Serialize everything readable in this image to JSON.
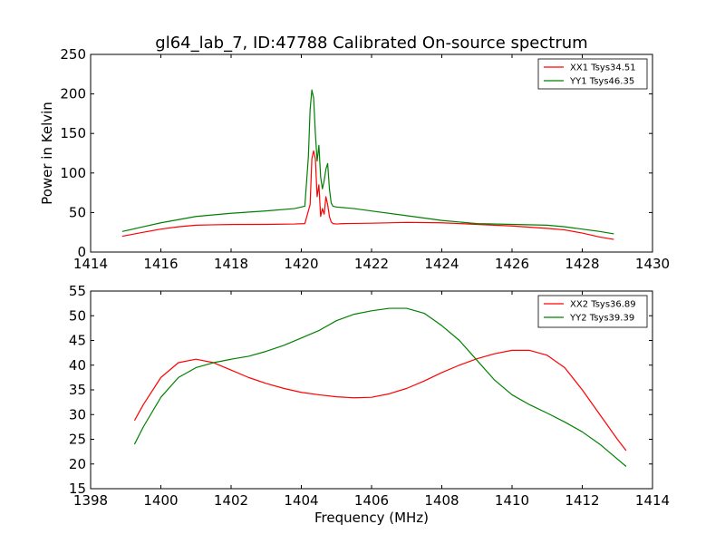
{
  "chart_data": [
    {
      "type": "line",
      "title": "gl64_lab_7, ID:47788 Calibrated On-source spectrum",
      "xlabel": "",
      "ylabel": "Power in Kelvin",
      "xlim": [
        1414,
        1430
      ],
      "ylim": [
        0,
        250
      ],
      "xticks": [
        "1414",
        "1416",
        "1418",
        "1420",
        "1422",
        "1424",
        "1426",
        "1428",
        "1430"
      ],
      "yticks": [
        "0",
        "50",
        "100",
        "150",
        "200",
        "250"
      ],
      "grid": false,
      "legend_position": "top-right",
      "series": [
        {
          "name": "XX1 Tsys34.51",
          "color": "#ff0000",
          "x": [
            1414.9,
            1415.5,
            1416.0,
            1416.5,
            1417.0,
            1417.5,
            1418.0,
            1419.0,
            1419.8,
            1420.1,
            1420.25,
            1420.3,
            1420.35,
            1420.4,
            1420.45,
            1420.5,
            1420.55,
            1420.6,
            1420.65,
            1420.7,
            1420.75,
            1420.8,
            1420.85,
            1420.9,
            1421.0,
            1421.2,
            1422.0,
            1423.0,
            1424.0,
            1425.0,
            1426.0,
            1427.0,
            1427.5,
            1428.0,
            1428.5,
            1428.9
          ],
          "y": [
            20,
            25,
            29,
            32,
            34,
            34.5,
            34.8,
            35,
            35.5,
            36,
            60,
            118,
            128,
            118,
            70,
            85,
            45,
            55,
            48,
            70,
            60,
            45,
            38,
            36,
            35.5,
            36,
            36.5,
            37.5,
            37,
            35,
            33,
            30,
            28,
            24,
            19,
            16
          ]
        },
        {
          "name": "YY1 Tsys46.35",
          "color": "#008000",
          "x": [
            1414.9,
            1415.5,
            1416.0,
            1416.5,
            1417.0,
            1418.0,
            1419.0,
            1419.8,
            1420.1,
            1420.2,
            1420.25,
            1420.3,
            1420.35,
            1420.4,
            1420.45,
            1420.5,
            1420.55,
            1420.6,
            1420.65,
            1420.7,
            1420.75,
            1420.8,
            1420.85,
            1420.9,
            1421.0,
            1421.5,
            1422.0,
            1423.0,
            1424.0,
            1425.0,
            1426.0,
            1427.0,
            1427.5,
            1428.0,
            1428.5,
            1428.9
          ],
          "y": [
            26,
            32,
            37,
            41,
            45,
            49,
            52,
            55,
            58,
            120,
            180,
            205,
            195,
            150,
            115,
            135,
            95,
            80,
            90,
            105,
            112,
            80,
            62,
            58,
            57,
            55,
            52,
            46,
            40,
            36,
            35,
            34,
            32,
            29,
            26,
            23
          ]
        }
      ]
    },
    {
      "type": "line",
      "title": "",
      "xlabel": "Frequency (MHz)",
      "ylabel": "",
      "xlim": [
        1398,
        1414
      ],
      "ylim": [
        15,
        55
      ],
      "xticks": [
        "1398",
        "1400",
        "1402",
        "1404",
        "1406",
        "1408",
        "1410",
        "1412",
        "1414"
      ],
      "yticks": [
        "15",
        "20",
        "25",
        "30",
        "35",
        "40",
        "45",
        "50",
        "55"
      ],
      "grid": false,
      "legend_position": "top-right",
      "series": [
        {
          "name": "XX2 Tsys36.89",
          "color": "#ff0000",
          "x": [
            1399.25,
            1399.5,
            1400.0,
            1400.5,
            1401.0,
            1401.5,
            1402.0,
            1402.5,
            1403.0,
            1403.5,
            1404.0,
            1404.5,
            1405.0,
            1405.5,
            1406.0,
            1406.5,
            1407.0,
            1407.5,
            1408.0,
            1408.5,
            1409.0,
            1409.5,
            1410.0,
            1410.5,
            1411.0,
            1411.5,
            1412.0,
            1412.5,
            1413.0,
            1413.25
          ],
          "y": [
            28.8,
            32,
            37.5,
            40.5,
            41.2,
            40.5,
            39,
            37.5,
            36.3,
            35.3,
            34.5,
            34,
            33.6,
            33.4,
            33.5,
            34.2,
            35.3,
            36.8,
            38.5,
            40,
            41.3,
            42.3,
            43,
            43,
            42,
            39.5,
            35,
            30,
            25,
            22.7
          ]
        },
        {
          "name": "YY2 Tsys39.39",
          "color": "#008000",
          "x": [
            1399.25,
            1399.5,
            1400.0,
            1400.5,
            1401.0,
            1401.5,
            1402.0,
            1402.5,
            1403.0,
            1403.5,
            1404.0,
            1404.5,
            1405.0,
            1405.5,
            1406.0,
            1406.5,
            1407.0,
            1407.5,
            1408.0,
            1408.5,
            1409.0,
            1409.5,
            1410.0,
            1410.5,
            1411.0,
            1411.5,
            1412.0,
            1412.5,
            1413.0,
            1413.25
          ],
          "y": [
            24,
            27.5,
            33.5,
            37.5,
            39.5,
            40.5,
            41.2,
            41.8,
            42.8,
            44,
            45.5,
            47,
            49,
            50.3,
            51,
            51.5,
            51.5,
            50.5,
            48,
            45,
            41,
            37,
            34,
            32,
            30.3,
            28.5,
            26.5,
            24,
            21,
            19.5
          ]
        }
      ]
    }
  ]
}
